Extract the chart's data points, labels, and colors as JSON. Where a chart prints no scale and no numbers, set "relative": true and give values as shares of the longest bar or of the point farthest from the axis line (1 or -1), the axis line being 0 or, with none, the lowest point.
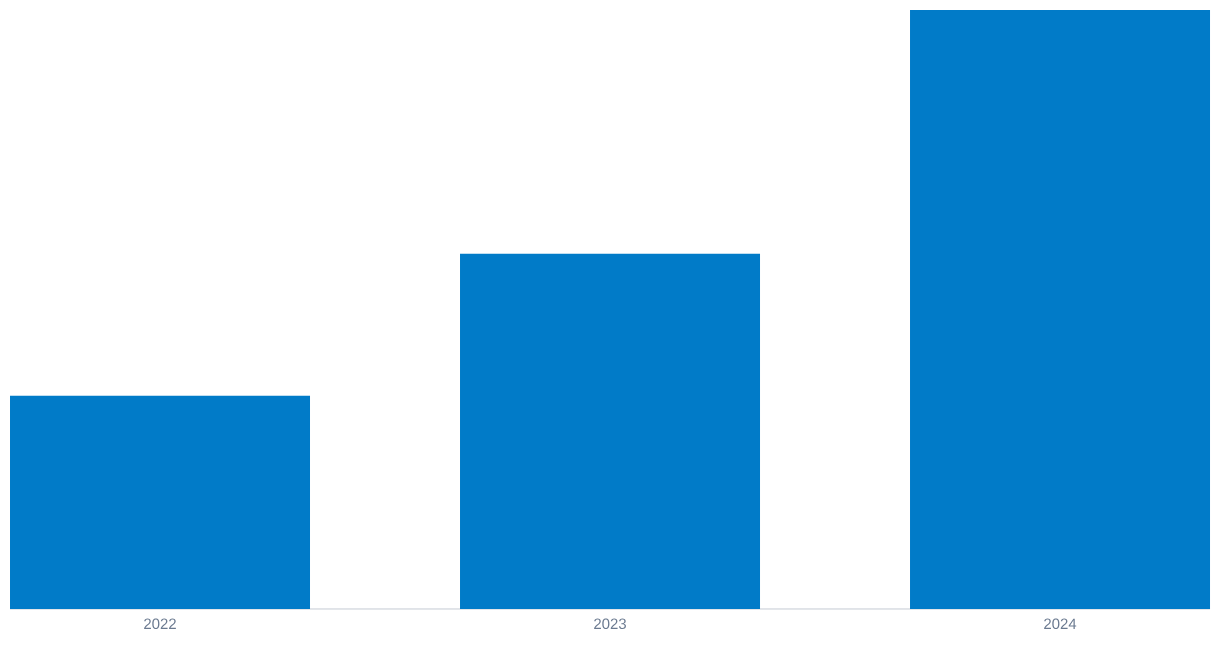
{
  "chart_data": {
    "type": "bar",
    "relative": true,
    "categories": [
      "2022",
      "2023",
      "2024"
    ],
    "values": [
      0.356,
      0.593,
      1
    ],
    "color": "#017bc8"
  }
}
